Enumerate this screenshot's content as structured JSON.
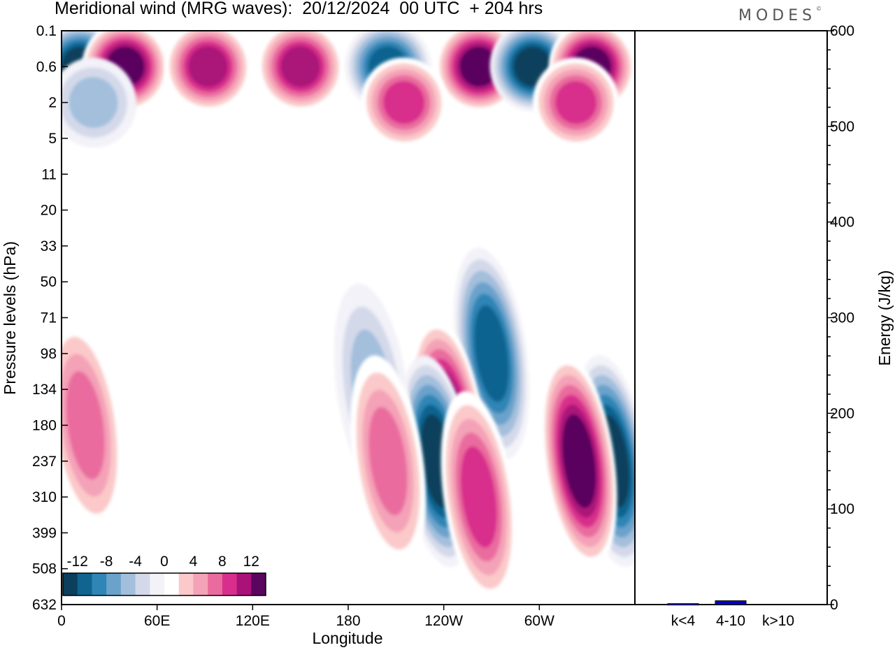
{
  "header": {
    "title": "Meridional wind (MRG waves):  20/12/2024  00 UTC  + 204 hrs",
    "brand": "MODES",
    "brand_mark": "©"
  },
  "chart_data": [
    {
      "type": "heatmap",
      "title": "Meridional wind (MRG waves):  20/12/2024  00 UTC  + 204 hrs",
      "xlabel": "Longitude",
      "ylabel": "Pressure levels (hPa)",
      "x_ticks": [
        "0",
        "60E",
        "120E",
        "180",
        "120W",
        "60W"
      ],
      "x_tick_degrees": [
        0,
        60,
        120,
        180,
        240,
        300
      ],
      "xlim": [
        0,
        360
      ],
      "y_ticks": [
        "0.1",
        "0.6",
        "2",
        "5",
        "11",
        "20",
        "33",
        "50",
        "71",
        "98",
        "134",
        "180",
        "237",
        "310",
        "399",
        "508",
        "632"
      ],
      "y_scale": "pressure levels, 0.1 hPa at top to 632 hPa at bottom",
      "colorbar": {
        "labels": [
          "-12",
          "-8",
          "-4",
          "0",
          "4",
          "8",
          "12"
        ],
        "levels": [
          -14,
          -12,
          -10,
          -8,
          -6,
          -4,
          -2,
          0,
          2,
          4,
          6,
          8,
          10,
          12,
          14
        ],
        "colors": [
          "#0b3f5c",
          "#11648f",
          "#2f85b6",
          "#6aa2cb",
          "#a3bfdc",
          "#d4d9ea",
          "#f2f2f8",
          "#ffffff",
          "#fbc9c9",
          "#f4a2b8",
          "#ea6c9e",
          "#d82f8c",
          "#ab1279",
          "#5a065f"
        ]
      },
      "features": [
        {
          "lon": 12,
          "level": "0.6",
          "value": -14
        },
        {
          "lon": 40,
          "level": "0.6",
          "value": 14
        },
        {
          "lon": 92,
          "level": "0.6",
          "value": 12
        },
        {
          "lon": 150,
          "level": "0.6",
          "value": 12
        },
        {
          "lon": 205,
          "level": "0.6",
          "value": -12
        },
        {
          "lon": 262,
          "level": "0.6",
          "value": 14
        },
        {
          "lon": 296,
          "level": "0.6",
          "value": -14
        },
        {
          "lon": 333,
          "level": "0.6",
          "value": 14
        },
        {
          "lon": 215,
          "level": "2",
          "value": 10
        },
        {
          "lon": 323,
          "level": "2",
          "value": 10
        },
        {
          "lon": 20,
          "level": "2",
          "value": -6
        },
        {
          "lon": 270,
          "level": "98",
          "value": -12
        },
        {
          "lon": 243,
          "level": "180",
          "value": 14
        },
        {
          "lon": 236,
          "level": "237",
          "value": -14
        },
        {
          "lon": 346,
          "level": "237",
          "value": -14
        },
        {
          "lon": 325,
          "level": "237",
          "value": 14
        },
        {
          "lon": 15,
          "level": "180",
          "value": 8
        },
        {
          "lon": 195,
          "level": "134",
          "value": -6
        },
        {
          "lon": 205,
          "level": "237",
          "value": 8
        },
        {
          "lon": 262,
          "level": "310",
          "value": 10
        }
      ]
    },
    {
      "type": "bar",
      "categories": [
        "k<4",
        "4-10",
        "k>10"
      ],
      "values": [
        1,
        4,
        0
      ],
      "ylabel": "Energy (J/kg)",
      "ylim": [
        0,
        600
      ],
      "y_ticks": [
        "0",
        "100",
        "200",
        "300",
        "400",
        "500",
        "600"
      ],
      "bar_color": "#0000cc"
    }
  ]
}
